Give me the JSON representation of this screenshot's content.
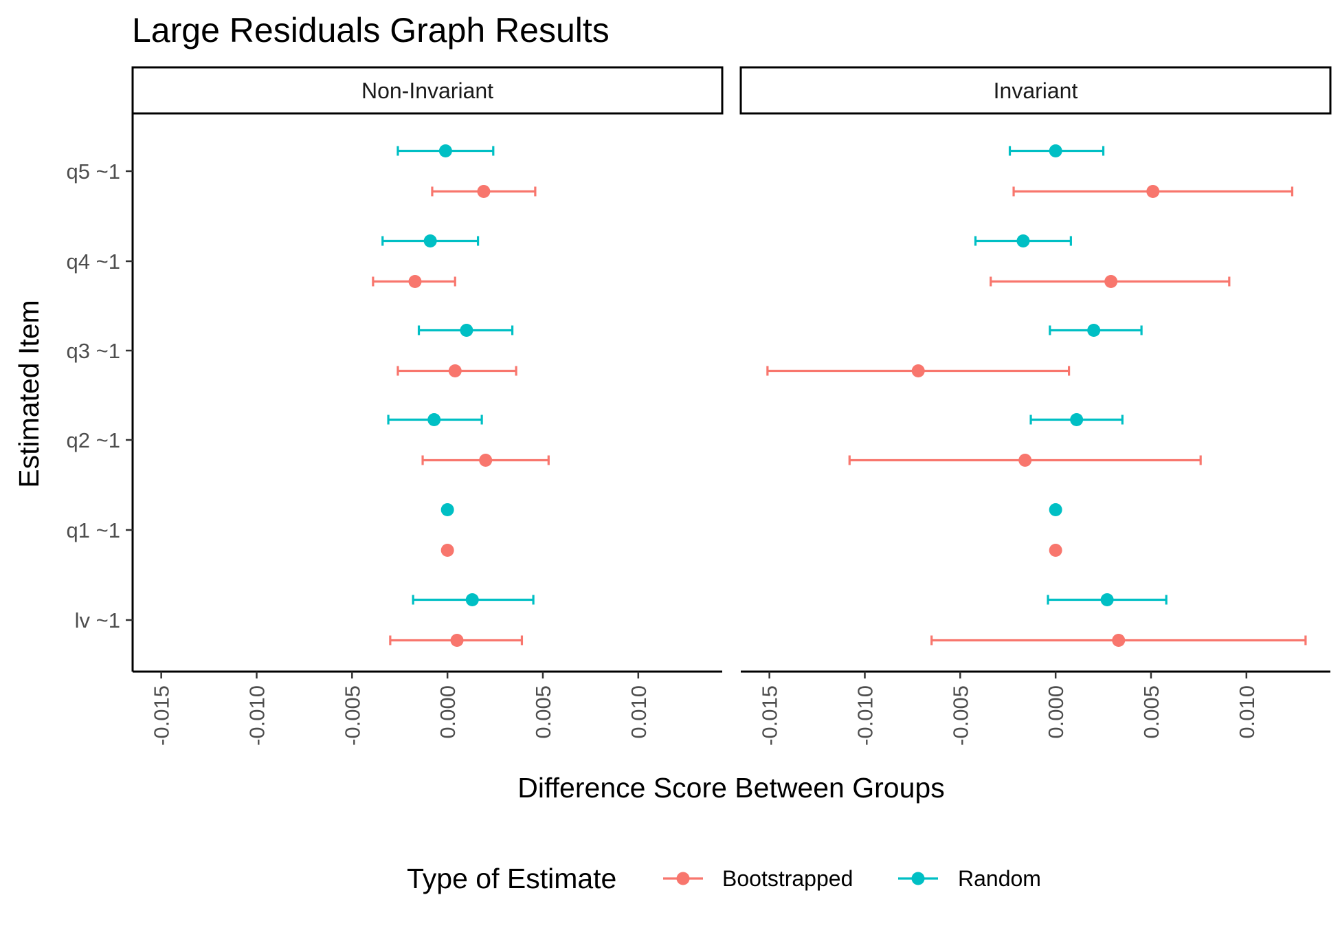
{
  "chart_data": {
    "type": "scatter",
    "title": "Large Residuals Graph Results",
    "xlabel": "Difference Score Between Groups",
    "ylabel": "Estimated Item",
    "x_ticks": [
      "-0.015",
      "-0.010",
      "-0.005",
      "0.000",
      "0.005",
      "0.010"
    ],
    "x_tick_values": [
      -0.015,
      -0.01,
      -0.005,
      0.0,
      0.005,
      0.01
    ],
    "xlim": [
      -0.0165,
      0.0144
    ],
    "categories": [
      "q5 ~1",
      "q4 ~1",
      "q3 ~1",
      "q2 ~1",
      "q1 ~1",
      "lv ~1"
    ],
    "legend": {
      "title": "Type of Estimate",
      "position": "bottom",
      "entries": [
        {
          "name": "Bootstrapped",
          "color": "#F8766D"
        },
        {
          "name": "Random",
          "color": "#00BFC4"
        }
      ]
    },
    "panels": [
      {
        "name": "Non-Invariant",
        "series": [
          {
            "name": "Random",
            "color": "#00BFC4",
            "points": [
              {
                "item": "q5 ~1",
                "x": -0.0001,
                "lo": -0.0026,
                "hi": 0.0024
              },
              {
                "item": "q4 ~1",
                "x": -0.0009,
                "lo": -0.0034,
                "hi": 0.0016
              },
              {
                "item": "q3 ~1",
                "x": 0.001,
                "lo": -0.0015,
                "hi": 0.0034
              },
              {
                "item": "q2 ~1",
                "x": -0.0007,
                "lo": -0.0031,
                "hi": 0.0018
              },
              {
                "item": "q1 ~1",
                "x": 0.0,
                "lo": 0.0,
                "hi": 0.0
              },
              {
                "item": "lv ~1",
                "x": 0.0013,
                "lo": -0.0018,
                "hi": 0.0045
              }
            ]
          },
          {
            "name": "Bootstrapped",
            "color": "#F8766D",
            "points": [
              {
                "item": "q5 ~1",
                "x": 0.0019,
                "lo": -0.0008,
                "hi": 0.0046
              },
              {
                "item": "q4 ~1",
                "x": -0.0017,
                "lo": -0.0039,
                "hi": 0.0004
              },
              {
                "item": "q3 ~1",
                "x": 0.0004,
                "lo": -0.0026,
                "hi": 0.0036
              },
              {
                "item": "q2 ~1",
                "x": 0.002,
                "lo": -0.0013,
                "hi": 0.0053
              },
              {
                "item": "q1 ~1",
                "x": 0.0,
                "lo": 0.0,
                "hi": 0.0
              },
              {
                "item": "lv ~1",
                "x": 0.0005,
                "lo": -0.003,
                "hi": 0.0039
              }
            ]
          }
        ]
      },
      {
        "name": "Invariant",
        "series": [
          {
            "name": "Random",
            "color": "#00BFC4",
            "points": [
              {
                "item": "q5 ~1",
                "x": 0.0,
                "lo": -0.0024,
                "hi": 0.0025
              },
              {
                "item": "q4 ~1",
                "x": -0.0017,
                "lo": -0.0042,
                "hi": 0.0008
              },
              {
                "item": "q3 ~1",
                "x": 0.002,
                "lo": -0.0003,
                "hi": 0.0045
              },
              {
                "item": "q2 ~1",
                "x": 0.0011,
                "lo": -0.0013,
                "hi": 0.0035
              },
              {
                "item": "q1 ~1",
                "x": 0.0,
                "lo": 0.0,
                "hi": 0.0
              },
              {
                "item": "lv ~1",
                "x": 0.0027,
                "lo": -0.0004,
                "hi": 0.0058
              }
            ]
          },
          {
            "name": "Bootstrapped",
            "color": "#F8766D",
            "points": [
              {
                "item": "q5 ~1",
                "x": 0.0051,
                "lo": -0.0022,
                "hi": 0.0124
              },
              {
                "item": "q4 ~1",
                "x": 0.0029,
                "lo": -0.0034,
                "hi": 0.0091
              },
              {
                "item": "q3 ~1",
                "x": -0.0072,
                "lo": -0.0151,
                "hi": 0.0007
              },
              {
                "item": "q2 ~1",
                "x": -0.0016,
                "lo": -0.0108,
                "hi": 0.0076
              },
              {
                "item": "q1 ~1",
                "x": 0.0,
                "lo": 0.0,
                "hi": 0.0
              },
              {
                "item": "lv ~1",
                "x": 0.0033,
                "lo": -0.0065,
                "hi": 0.0131
              }
            ]
          }
        ]
      }
    ]
  }
}
